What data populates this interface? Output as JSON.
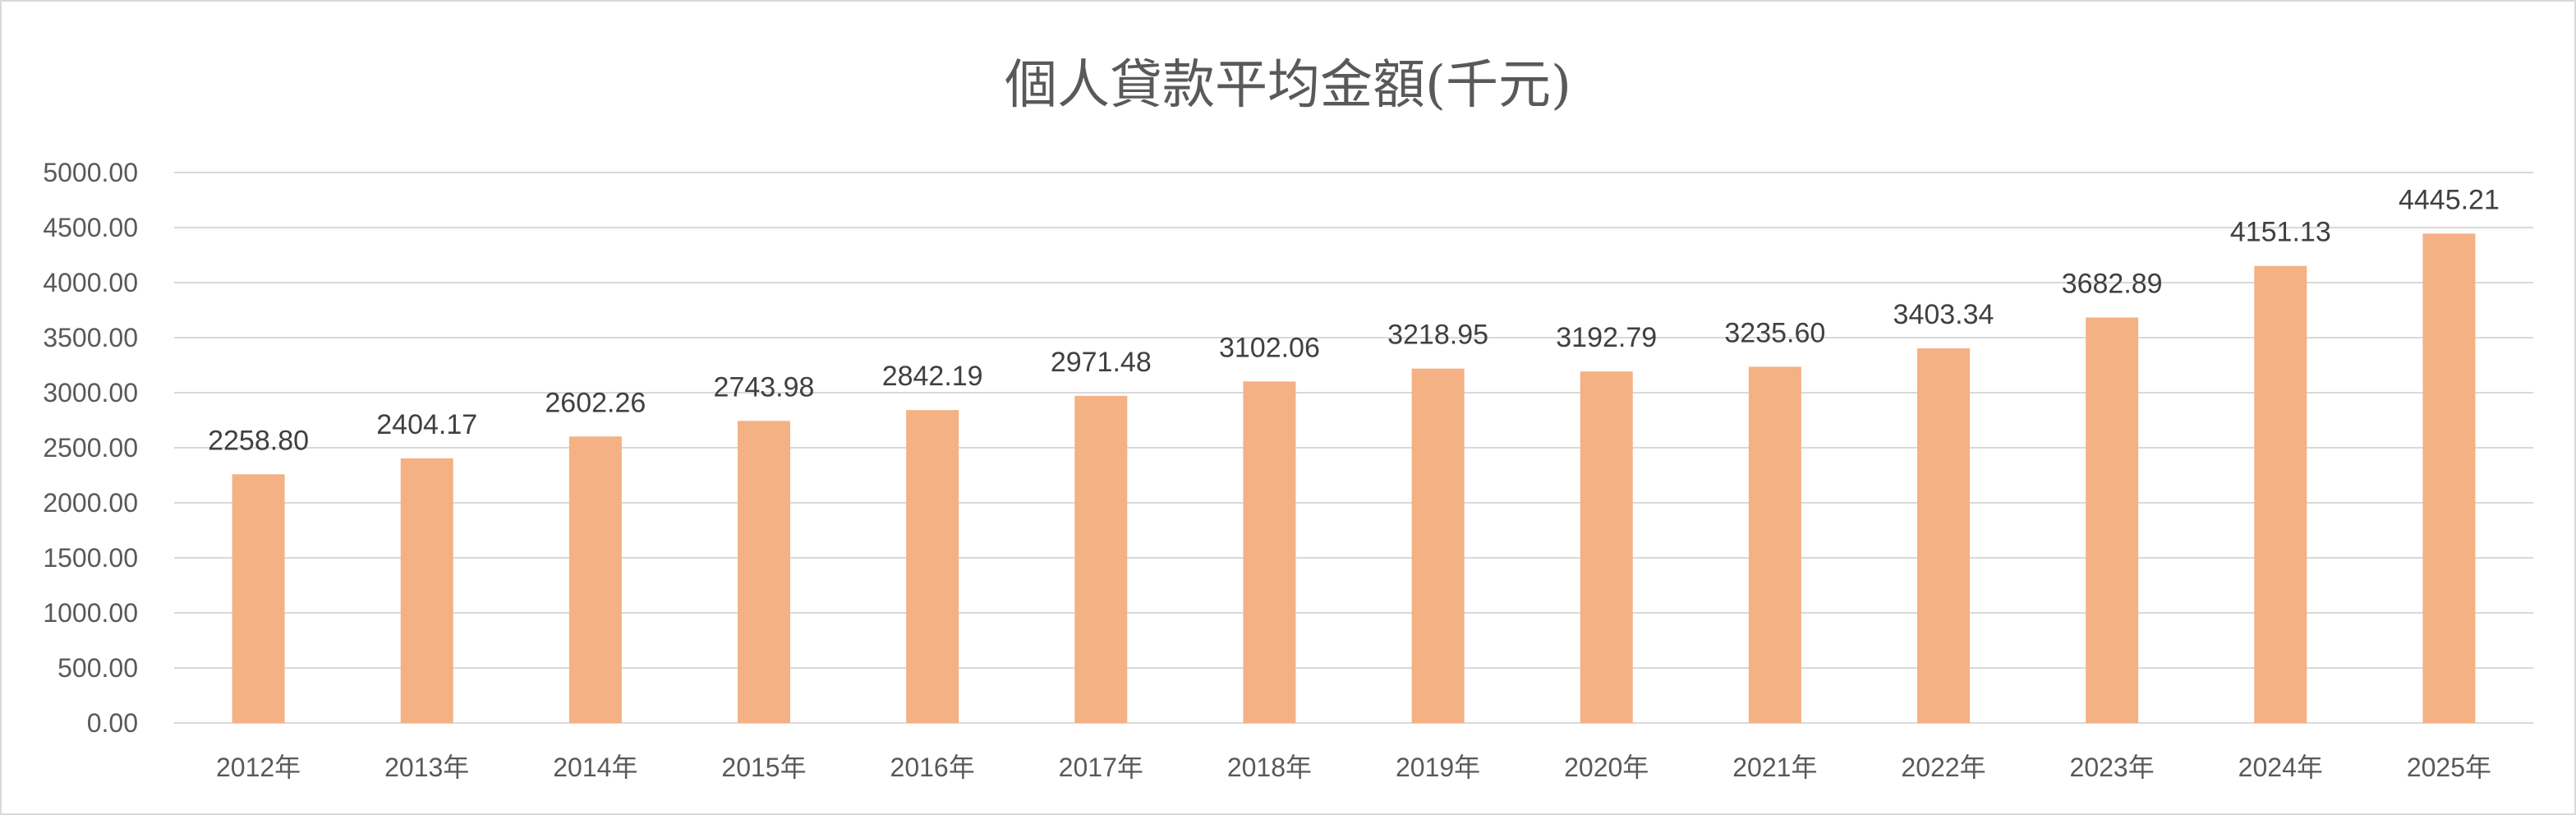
{
  "chart_data": {
    "type": "bar",
    "title": "個人貸款平均金額(千元)",
    "xlabel": "",
    "ylabel": "",
    "categories": [
      "2012年",
      "2013年",
      "2014年",
      "2015年",
      "2016年",
      "2017年",
      "2018年",
      "2019年",
      "2020年",
      "2021年",
      "2022年",
      "2023年",
      "2024年",
      "2025年"
    ],
    "values": [
      2258.8,
      2404.17,
      2602.26,
      2743.98,
      2842.19,
      2971.48,
      3102.06,
      3218.95,
      3192.79,
      3235.6,
      3403.34,
      3682.89,
      4151.13,
      4445.21
    ],
    "data_labels": [
      "2258.80",
      "2404.17",
      "2602.26",
      "2743.98",
      "2842.19",
      "2971.48",
      "3102.06",
      "3218.95",
      "3192.79",
      "3235.60",
      "3403.34",
      "3682.89",
      "4151.13",
      "4445.21"
    ],
    "ylim": [
      0,
      5000
    ],
    "y_ticks": [
      "0.00",
      "500.00",
      "1000.00",
      "1500.00",
      "2000.00",
      "2500.00",
      "3000.00",
      "3500.00",
      "4000.00",
      "4500.00",
      "5000.00"
    ],
    "grid": true,
    "legend": "none",
    "bar_color": "#F4B183"
  }
}
